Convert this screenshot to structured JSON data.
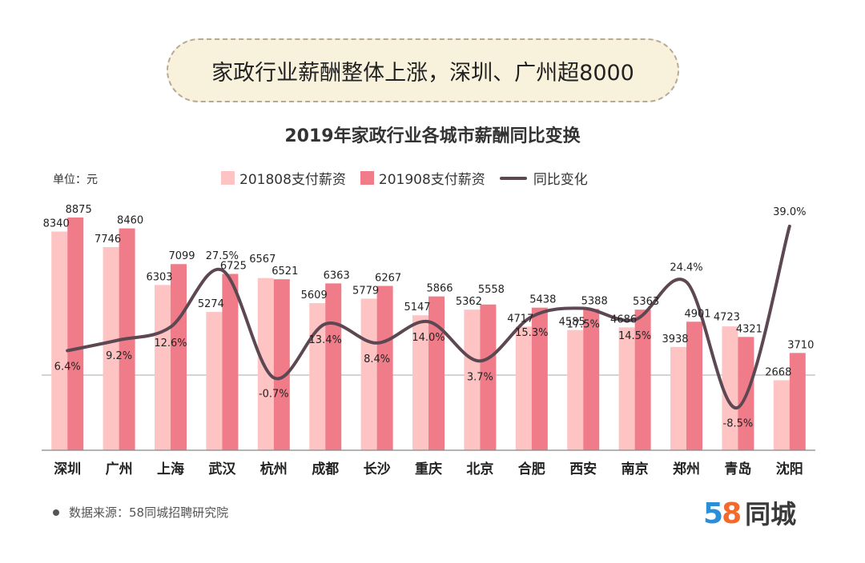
{
  "banner": {
    "text": "家政行业薪酬整体上涨，深圳、广州超8000"
  },
  "unit_label": "单位：元",
  "source": {
    "text": "数据来源：58同城招聘研究院"
  },
  "logo": {
    "digit1": "5",
    "digit2": "8",
    "text": "同城"
  },
  "colors": {
    "series2018": "#fdc4c3",
    "series2019": "#f07c89",
    "line": "#5c4752"
  },
  "chart_data": {
    "type": "bar",
    "title": "2019年家政行业各城市薪酬同比变换",
    "categories": [
      "深圳",
      "广州",
      "上海",
      "武汉",
      "杭州",
      "成都",
      "长沙",
      "重庆",
      "北京",
      "合肥",
      "西安",
      "南京",
      "郑州",
      "青岛",
      "沈阳"
    ],
    "series": [
      {
        "name": "201808支付薪资",
        "values": [
          8340,
          7746,
          6303,
          5274,
          6567,
          5609,
          5779,
          5147,
          5362,
          4717,
          4585,
          4686,
          3938,
          4723,
          2668
        ]
      },
      {
        "name": "201908支付薪资",
        "values": [
          8875,
          8460,
          7099,
          6725,
          6521,
          6363,
          6267,
          5866,
          5558,
          5438,
          5388,
          5363,
          4901,
          4321,
          3710
        ]
      }
    ],
    "line_series": {
      "name": "同比变化",
      "values": [
        6.4,
        9.2,
        12.6,
        27.5,
        -0.7,
        13.4,
        8.4,
        14.0,
        3.7,
        15.3,
        17.5,
        14.5,
        24.4,
        -8.5,
        39.0
      ],
      "labels": [
        "6.4%",
        "9.2%",
        "12.6%",
        "27.5%",
        "-0.7%",
        "13.4%",
        "8.4%",
        "14.0%",
        "3.7%",
        "15.3%",
        "17.5%",
        "14.5%",
        "24.4%",
        "-8.5%",
        "39.0%"
      ]
    },
    "ylabel": "单位：元",
    "legend": "top",
    "grid": false
  }
}
